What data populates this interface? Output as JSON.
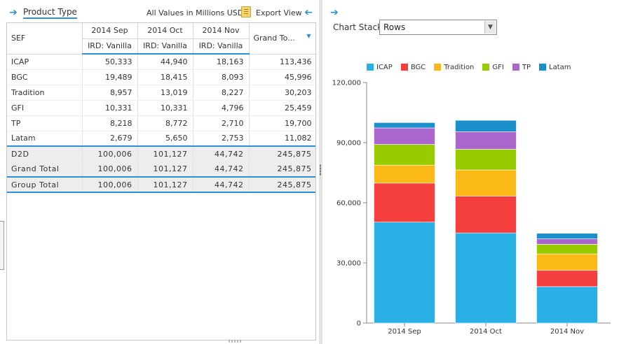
{
  "left_panel": {
    "title": "Product Type",
    "units_label": "All Values in Millions USD",
    "export_label": "Export View"
  },
  "grid": {
    "row_header": "SEF",
    "columns": [
      {
        "period": "2014 Sep",
        "desk": "IRD: Vanilla"
      },
      {
        "period": "2014 Oct",
        "desk": "IRD: Vanilla"
      },
      {
        "period": "2014 Nov",
        "desk": "IRD: Vanilla"
      }
    ],
    "grand_total_header": "Grand To...",
    "rows": [
      {
        "label": "ICAP",
        "values": [
          "50,333",
          "44,940",
          "18,163",
          "113,436"
        ]
      },
      {
        "label": "BGC",
        "values": [
          "19,489",
          "18,415",
          "8,093",
          "45,996"
        ]
      },
      {
        "label": "Tradition",
        "values": [
          "8,957",
          "13,019",
          "8,227",
          "30,203"
        ]
      },
      {
        "label": "GFI",
        "values": [
          "10,331",
          "10,331",
          "4,796",
          "25,459"
        ]
      },
      {
        "label": "TP",
        "values": [
          "8,218",
          "8,772",
          "2,710",
          "19,700"
        ]
      },
      {
        "label": "Latam",
        "values": [
          "2,679",
          "5,650",
          "2,753",
          "11,082"
        ]
      }
    ],
    "subtotal": {
      "label": "D2D",
      "values": [
        "100,006",
        "101,127",
        "44,742",
        "245,875"
      ]
    },
    "grand_total": {
      "label": "Grand Total",
      "values": [
        "100,006",
        "101,127",
        "44,742",
        "245,875"
      ]
    },
    "group_total": {
      "label": "Group Total",
      "values": [
        "100,006",
        "101,127",
        "44,742",
        "245,875"
      ]
    }
  },
  "right_panel": {
    "chart_stack_label": "Chart Stack :",
    "chart_stack_value": "Rows"
  },
  "colors": {
    "accent": "#2f8fd6",
    "ICAP": "#29b1e6",
    "BGC": "#f53e3e",
    "Tradition": "#fbb917",
    "GFI": "#99cc00",
    "TP": "#aa66cc",
    "Latam": "#1a8fc9"
  },
  "chart_data": {
    "type": "bar",
    "stacked": true,
    "categories": [
      "2014 Sep",
      "2014 Oct",
      "2014 Nov"
    ],
    "series": [
      {
        "name": "ICAP",
        "values": [
          50333,
          44940,
          18163
        ]
      },
      {
        "name": "BGC",
        "values": [
          19489,
          18415,
          8093
        ]
      },
      {
        "name": "Tradition",
        "values": [
          8957,
          13019,
          8227
        ]
      },
      {
        "name": "GFI",
        "values": [
          10331,
          10331,
          4796
        ]
      },
      {
        "name": "TP",
        "values": [
          8218,
          8772,
          2710
        ]
      },
      {
        "name": "Latam",
        "values": [
          2679,
          5650,
          2753
        ]
      }
    ],
    "ylim": [
      0,
      120000
    ],
    "yticks": [
      "0",
      "30,000",
      "60,000",
      "90,000",
      "120,000"
    ],
    "legend_position": "top",
    "grid": false
  }
}
